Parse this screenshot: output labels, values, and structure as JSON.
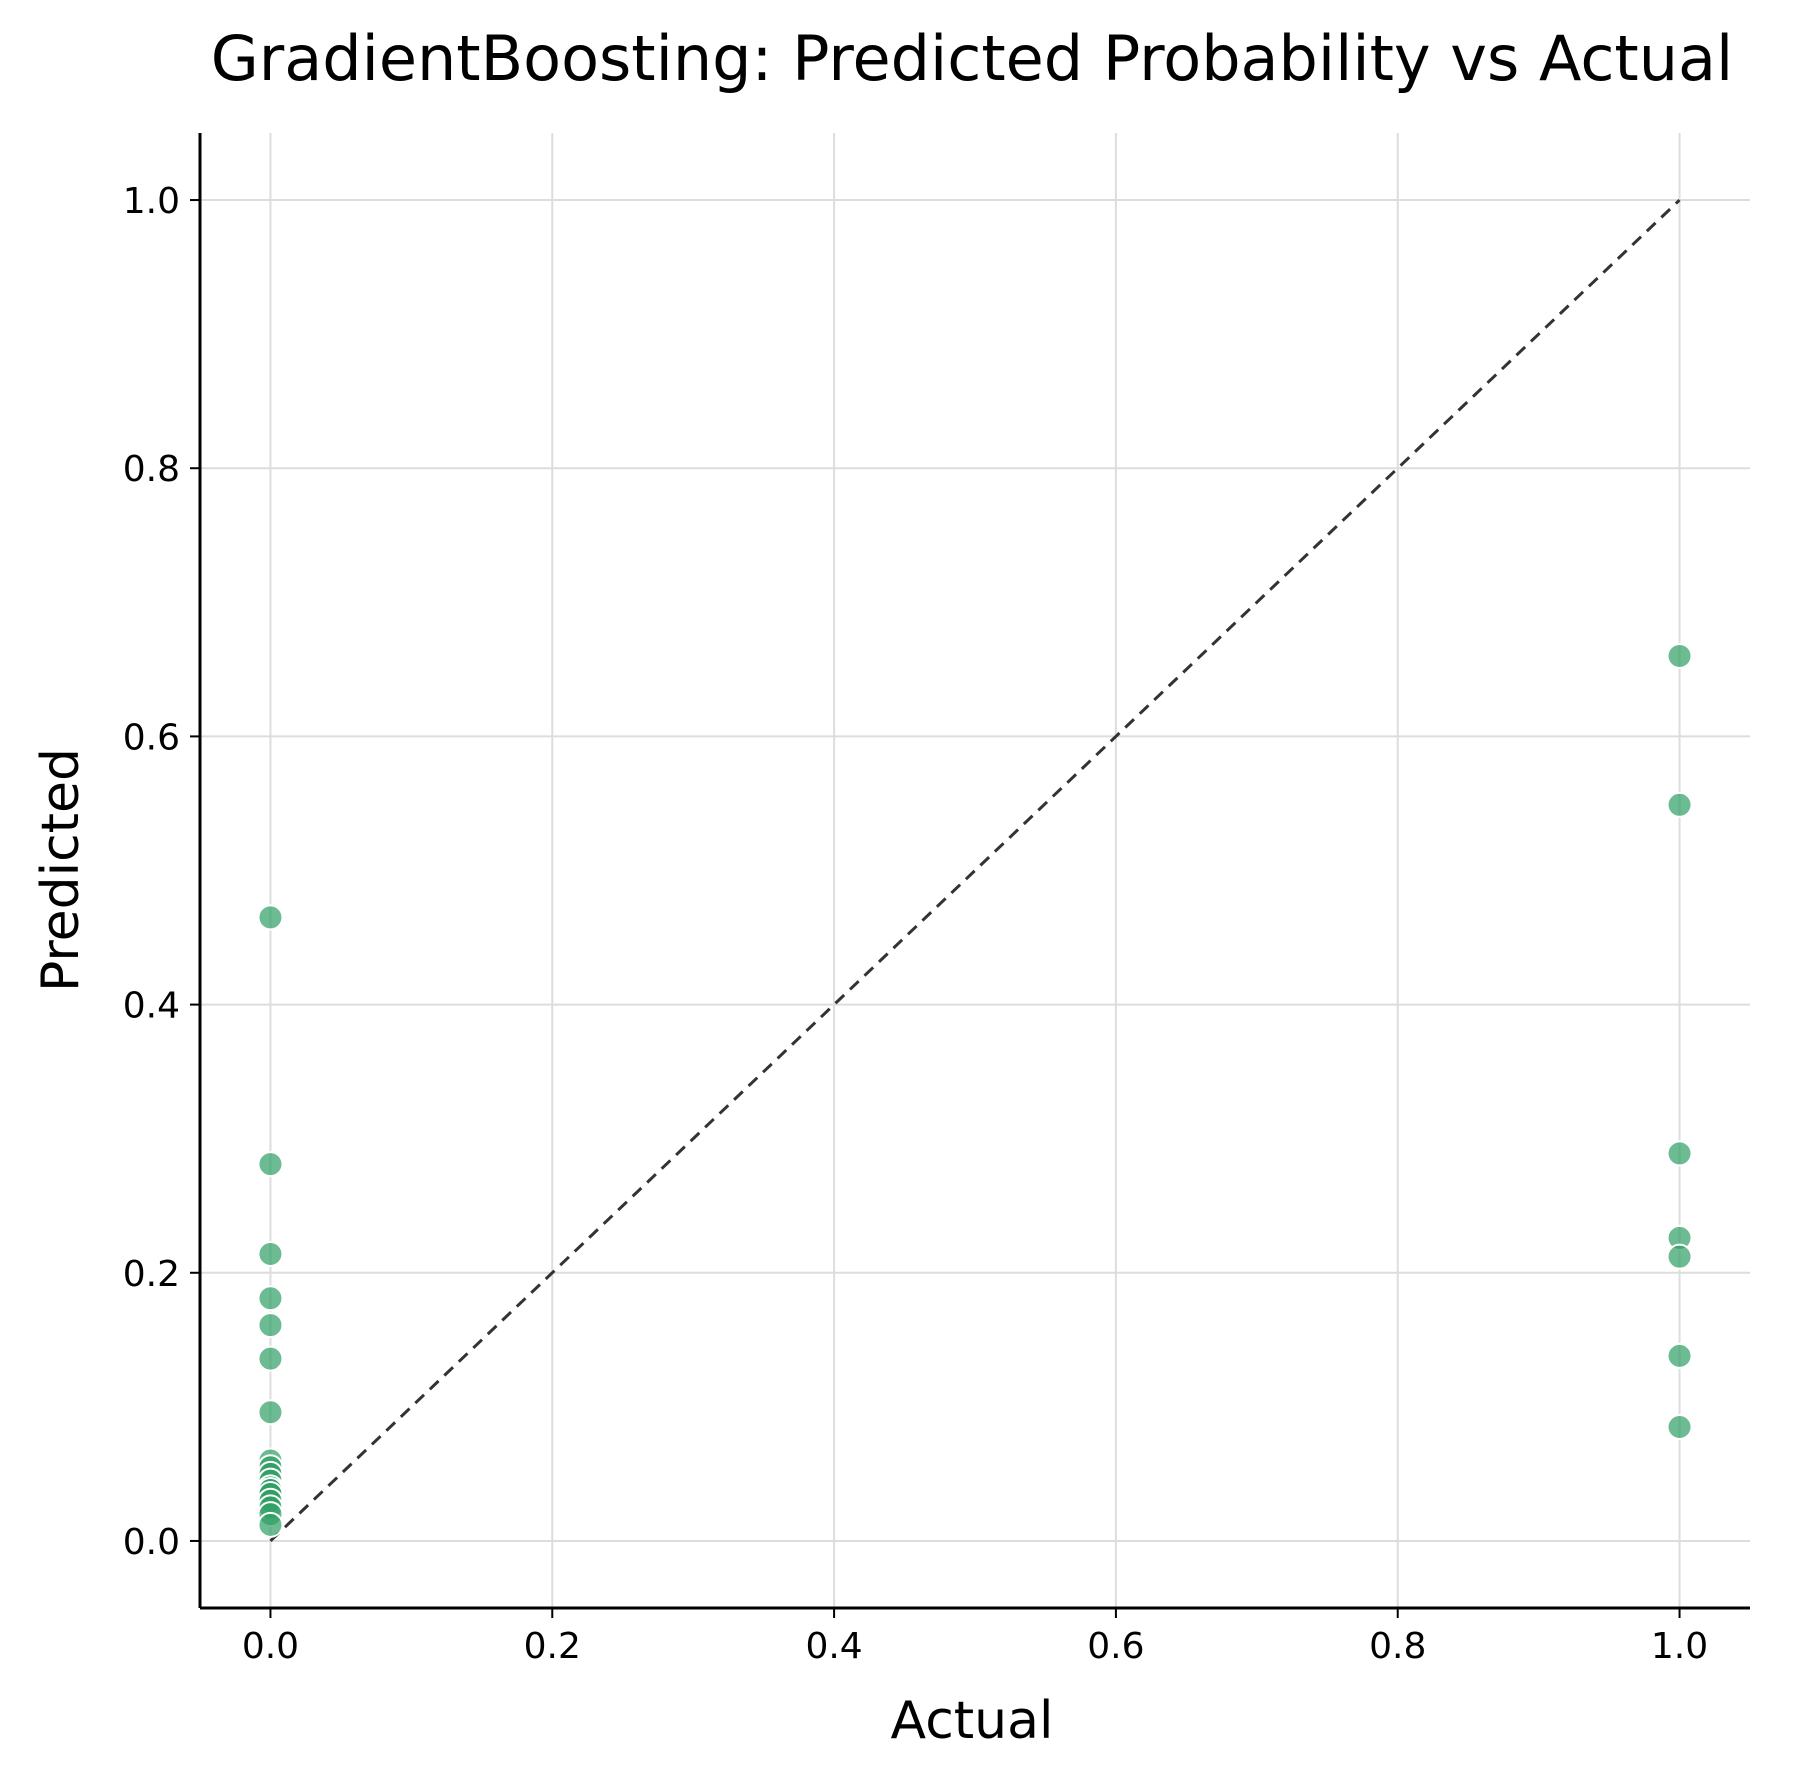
{
  "chart_data": {
    "type": "scatter",
    "title": "GradientBoosting: Predicted Probability vs Actual",
    "xlabel": "Actual",
    "ylabel": "Predicted",
    "xlim": [
      -0.05,
      1.05
    ],
    "ylim": [
      -0.05,
      1.05
    ],
    "x_ticks": [
      "0.0",
      "0.2",
      "0.4",
      "0.6",
      "0.8",
      "1.0"
    ],
    "y_ticks": [
      "0.0",
      "0.2",
      "0.4",
      "0.6",
      "0.8",
      "1.0"
    ],
    "grid": true,
    "reference_line": {
      "style": "dashed",
      "from": [
        0,
        0
      ],
      "to": [
        1,
        1
      ],
      "color": "#333333"
    },
    "colors": {
      "points": "#2e9e64",
      "point_edge": "#ffffff",
      "grid": "#dddddd",
      "axis": "#000000"
    },
    "series": [
      {
        "points": [
          {
            "x": 0,
            "y": 0.465
          },
          {
            "x": 0,
            "y": 0.281
          },
          {
            "x": 0,
            "y": 0.214
          },
          {
            "x": 0,
            "y": 0.181
          },
          {
            "x": 0,
            "y": 0.161
          },
          {
            "x": 0,
            "y": 0.136
          },
          {
            "x": 0,
            "y": 0.096
          },
          {
            "x": 0,
            "y": 0.06
          },
          {
            "x": 0,
            "y": 0.055
          },
          {
            "x": 0,
            "y": 0.05
          },
          {
            "x": 0,
            "y": 0.045
          },
          {
            "x": 0,
            "y": 0.04
          },
          {
            "x": 0,
            "y": 0.038
          },
          {
            "x": 0,
            "y": 0.035
          },
          {
            "x": 0,
            "y": 0.03
          },
          {
            "x": 0,
            "y": 0.025
          },
          {
            "x": 0,
            "y": 0.02
          },
          {
            "x": 0,
            "y": 0.012
          },
          {
            "x": 1,
            "y": 0.66
          },
          {
            "x": 1,
            "y": 0.549
          },
          {
            "x": 1,
            "y": 0.289
          },
          {
            "x": 1,
            "y": 0.226
          },
          {
            "x": 1,
            "y": 0.212
          },
          {
            "x": 1,
            "y": 0.138
          },
          {
            "x": 1,
            "y": 0.085
          }
        ]
      }
    ]
  }
}
